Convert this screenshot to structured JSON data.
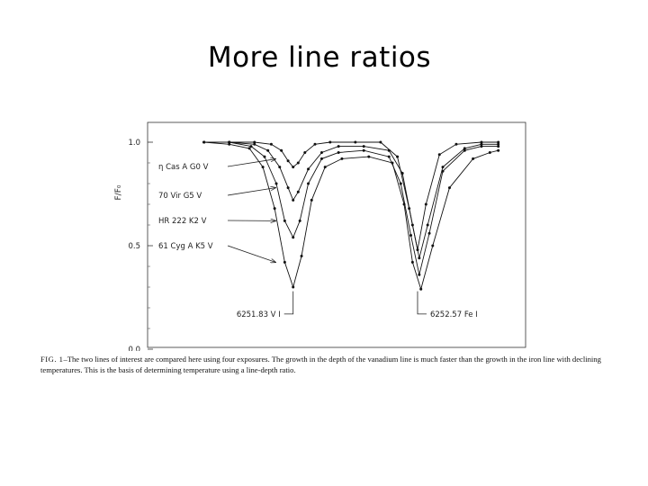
{
  "slide": {
    "title": "More line ratios"
  },
  "caption": {
    "label": "FIG. 1",
    "text": "–The two lines of interest are compared here using four exposures. The growth in the depth of the vanadium line is much faster than the growth in the iron line with declining temperatures. This is the basis of determining temperature using a line-depth ratio."
  },
  "chart_data": {
    "type": "line",
    "title": "",
    "xlabel": "",
    "ylabel": "F/F₀",
    "ylim": [
      0.0,
      1.0
    ],
    "y_ticks": [
      "1.0",
      "0.5",
      "0.0"
    ],
    "x_range": [
      6251.2,
      6253.1
    ],
    "grid": false,
    "annotations": [
      {
        "label": "6251.83  V I",
        "x": 6251.83
      },
      {
        "label": "6252.57  Fe I",
        "x": 6252.57
      }
    ],
    "series": [
      {
        "name": "η Cas A  G0 V",
        "x": [
          6251.3,
          6251.45,
          6251.6,
          6251.7,
          6251.76,
          6251.8,
          6251.83,
          6251.86,
          6251.9,
          6251.96,
          6252.05,
          6252.2,
          6252.35,
          6252.45,
          6252.52,
          6252.57,
          6252.62,
          6252.7,
          6252.8,
          6252.95,
          6253.05
        ],
        "y": [
          1.0,
          1.0,
          1.0,
          0.99,
          0.96,
          0.91,
          0.88,
          0.9,
          0.95,
          0.99,
          1.0,
          1.0,
          1.0,
          0.93,
          0.68,
          0.48,
          0.7,
          0.94,
          0.99,
          1.0,
          1.0
        ]
      },
      {
        "name": "70 Vir  G5 V",
        "x": [
          6251.3,
          6251.45,
          6251.6,
          6251.68,
          6251.75,
          6251.8,
          6251.83,
          6251.86,
          6251.92,
          6252.0,
          6252.1,
          6252.25,
          6252.4,
          6252.48,
          6252.54,
          6252.58,
          6252.63,
          6252.72,
          6252.85,
          6252.95,
          6253.05
        ],
        "y": [
          1.0,
          1.0,
          0.99,
          0.96,
          0.88,
          0.78,
          0.72,
          0.76,
          0.87,
          0.95,
          0.98,
          0.98,
          0.96,
          0.85,
          0.6,
          0.44,
          0.6,
          0.88,
          0.97,
          0.99,
          0.99
        ]
      },
      {
        "name": "HR 222  K2 V",
        "x": [
          6251.3,
          6251.45,
          6251.58,
          6251.66,
          6251.73,
          6251.78,
          6251.83,
          6251.87,
          6251.92,
          6252.0,
          6252.1,
          6252.25,
          6252.4,
          6252.47,
          6252.53,
          6252.58,
          6252.64,
          6252.72,
          6252.85,
          6252.95,
          6253.05
        ],
        "y": [
          1.0,
          1.0,
          0.98,
          0.93,
          0.8,
          0.62,
          0.54,
          0.62,
          0.8,
          0.92,
          0.95,
          0.96,
          0.93,
          0.8,
          0.55,
          0.36,
          0.56,
          0.86,
          0.96,
          0.98,
          0.98
        ]
      },
      {
        "name": "61 Cyg A  K5 V",
        "x": [
          6251.3,
          6251.45,
          6251.57,
          6251.65,
          6251.72,
          6251.78,
          6251.83,
          6251.88,
          6251.94,
          6252.02,
          6252.12,
          6252.28,
          6252.42,
          6252.49,
          6252.54,
          6252.59,
          6252.66,
          6252.76,
          6252.9,
          6253.0,
          6253.05
        ],
        "y": [
          1.0,
          0.99,
          0.97,
          0.88,
          0.68,
          0.42,
          0.3,
          0.45,
          0.72,
          0.88,
          0.92,
          0.93,
          0.9,
          0.7,
          0.42,
          0.29,
          0.5,
          0.78,
          0.92,
          0.95,
          0.96
        ]
      }
    ]
  }
}
